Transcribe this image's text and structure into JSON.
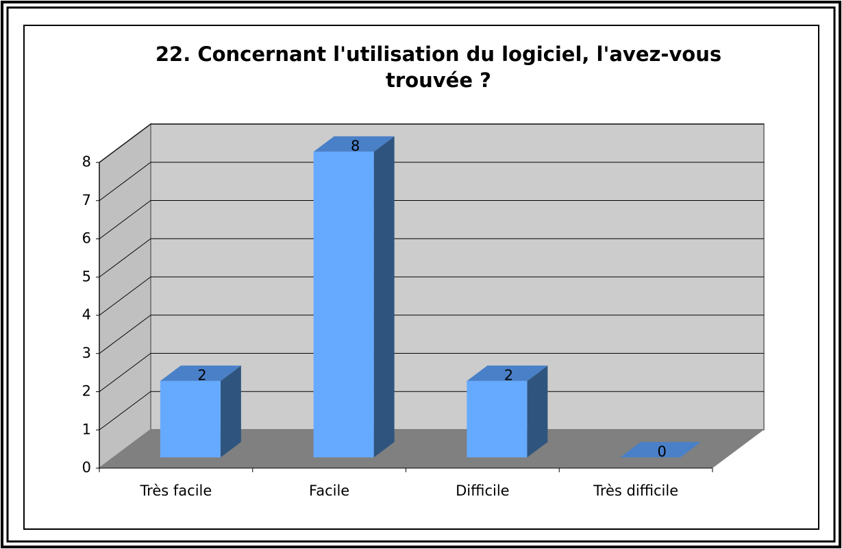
{
  "chart_data": {
    "type": "bar3d",
    "title": "22. Concernant l'utilisation du logiciel, l'avez-vous trouvée ?",
    "categories": [
      "Très facile",
      "Facile",
      "Difficile",
      "Très difficile"
    ],
    "values": [
      2,
      8,
      2,
      0
    ],
    "color": "#66aaff",
    "ylim": [
      0,
      8
    ],
    "yticks": [
      0,
      1,
      2,
      3,
      4,
      5,
      6,
      7,
      8
    ],
    "grid": true
  }
}
